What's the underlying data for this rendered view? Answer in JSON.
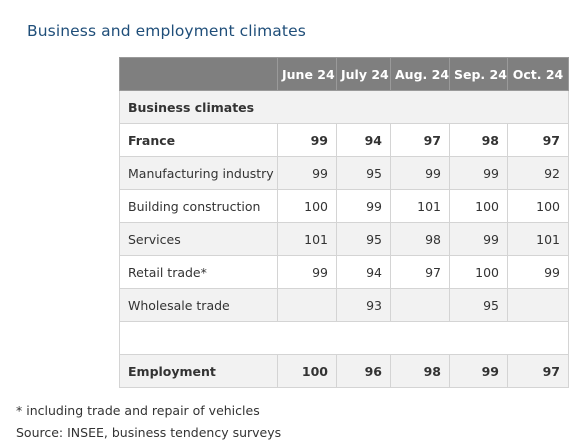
{
  "title": "Business and employment climates",
  "table": {
    "columns": [
      "",
      "June 24",
      "July 24",
      "Aug. 24",
      "Sep. 24",
      "Oct. 24"
    ],
    "section_label": "Business climates",
    "rows": [
      {
        "label": "France",
        "values": [
          "99",
          "94",
          "97",
          "98",
          "97"
        ]
      },
      {
        "label": "Manufacturing industry",
        "values": [
          "99",
          "95",
          "99",
          "99",
          "92"
        ]
      },
      {
        "label": "Building construction",
        "values": [
          "100",
          "99",
          "101",
          "100",
          "100"
        ]
      },
      {
        "label": "Services",
        "values": [
          "101",
          "95",
          "98",
          "99",
          "101"
        ]
      },
      {
        "label": "Retail trade*",
        "values": [
          "99",
          "94",
          "97",
          "100",
          "99"
        ]
      },
      {
        "label": "Wholesale trade",
        "values": [
          "",
          "93",
          "",
          "95",
          ""
        ]
      }
    ],
    "employment": {
      "label": "Employment",
      "values": [
        "100",
        "96",
        "98",
        "99",
        "97"
      ]
    }
  },
  "footnote": "* including trade and repair of vehicles",
  "source": "Source: INSEE, business tendency surveys"
}
